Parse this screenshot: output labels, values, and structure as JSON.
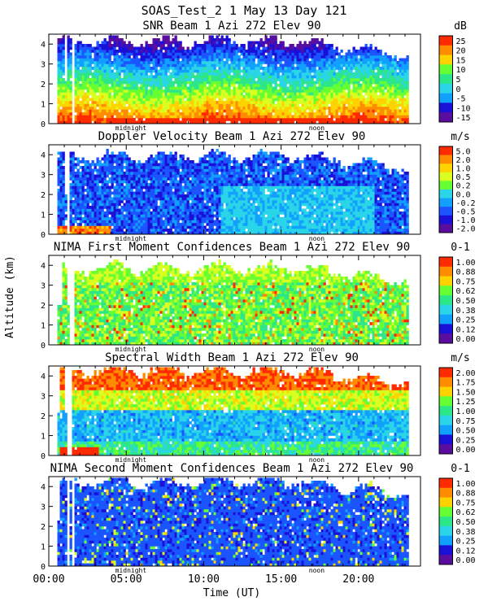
{
  "header": {
    "line1": "SOAS_Test_2    1 May 13 Day 121"
  },
  "axes": {
    "ylabel": "Altitude (km)",
    "xlabel": "Time (UT)",
    "x_ticks": [
      "00:00",
      "05:00",
      "10:00",
      "15:00",
      "20:00"
    ],
    "y_ticks": [
      "0",
      "1",
      "2",
      "3",
      "4"
    ],
    "markers": [
      "midnight",
      "noon"
    ]
  },
  "colors": {
    "palette": [
      "#5a0ea0",
      "#1a10d8",
      "#1a55ff",
      "#12a0ff",
      "#2ad5e8",
      "#2ee68a",
      "#66ff33",
      "#d8ff20",
      "#ffd200",
      "#ff8c00",
      "#ff2a00"
    ]
  },
  "chart_data": [
    {
      "type": "heatmap",
      "title": "SNR Beam 1 Azi 272 Elev 90",
      "unit": "dB",
      "x_range": [
        0,
        24
      ],
      "y_range": [
        0,
        4.5
      ],
      "colorbar": [
        "25",
        "20",
        "15",
        "10",
        "5",
        "0",
        "-5",
        "-10",
        "-15"
      ]
    },
    {
      "type": "heatmap",
      "title": "Doppler Velocity Beam 1 Azi 272 Elev 90",
      "unit": "m/s",
      "x_range": [
        0,
        24
      ],
      "y_range": [
        0,
        4.5
      ],
      "colorbar": [
        "5.0",
        "2.0",
        "1.0",
        "0.5",
        "0.2",
        "0.0",
        "-0.2",
        "-0.5",
        "-1.0",
        "-2.0"
      ]
    },
    {
      "type": "heatmap",
      "title": "NIMA First Moment Confidences Beam 1 Azi 272 Elev 90",
      "unit": "0-1",
      "x_range": [
        0,
        24
      ],
      "y_range": [
        0,
        4.5
      ],
      "colorbar": [
        "1.00",
        "0.88",
        "0.75",
        "0.62",
        "0.50",
        "0.38",
        "0.25",
        "0.12",
        "0.00"
      ]
    },
    {
      "type": "heatmap",
      "title": "Spectral Width Beam 1 Azi 272 Elev 90",
      "unit": "m/s",
      "x_range": [
        0,
        24
      ],
      "y_range": [
        0,
        4.5
      ],
      "colorbar": [
        "2.00",
        "1.75",
        "1.50",
        "1.25",
        "1.00",
        "0.75",
        "0.50",
        "0.25",
        "0.00"
      ]
    },
    {
      "type": "heatmap",
      "title": "NIMA Second Moment Confidences Beam 1 Azi 272 Elev 90",
      "unit": "0-1",
      "x_range": [
        0,
        24
      ],
      "y_range": [
        0,
        4.5
      ],
      "colorbar": [
        "1.00",
        "0.88",
        "0.75",
        "0.62",
        "0.50",
        "0.38",
        "0.25",
        "0.12",
        "0.00"
      ]
    }
  ]
}
